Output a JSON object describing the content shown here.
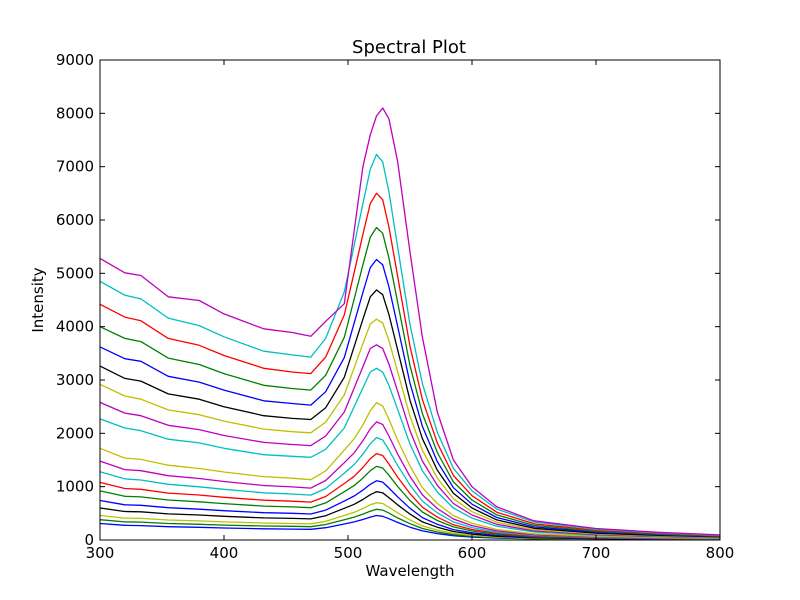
{
  "chart_data": {
    "type": "line",
    "title": "Spectral Plot",
    "xlabel": "Wavelength",
    "ylabel": "Intensity",
    "xlim": [
      300,
      800
    ],
    "ylim": [
      0,
      9000
    ],
    "xticks": [
      300,
      400,
      500,
      600,
      700,
      800
    ],
    "yticks": [
      0,
      1000,
      2000,
      3000,
      4000,
      5000,
      6000,
      7000,
      8000,
      9000
    ],
    "grid": false,
    "legend": "none",
    "x": [
      300,
      320,
      333,
      355,
      380,
      400,
      432,
      455,
      470,
      482,
      497,
      505,
      512,
      518,
      523,
      528,
      533,
      540,
      550,
      560,
      572,
      585,
      600,
      620,
      650,
      700,
      750,
      800
    ],
    "series": [
      {
        "color": "#0000ff",
        "values": [
          310,
          275,
          270,
          250,
          238,
          225,
          210,
          205,
          200,
          230,
          300,
          340,
          385,
          430,
          460,
          445,
          400,
          330,
          240,
          170,
          120,
          80,
          55,
          35,
          20,
          12,
          8,
          5
        ]
      },
      {
        "color": "#008000",
        "values": [
          380,
          340,
          335,
          310,
          295,
          280,
          262,
          256,
          250,
          290,
          380,
          430,
          485,
          540,
          575,
          560,
          505,
          415,
          305,
          215,
          150,
          100,
          70,
          45,
          25,
          15,
          10,
          6
        ]
      },
      {
        "color": "#bfbf00",
        "values": [
          460,
          410,
          405,
          375,
          358,
          340,
          318,
          310,
          303,
          350,
          460,
          520,
          590,
          660,
          700,
          685,
          615,
          510,
          375,
          265,
          185,
          125,
          85,
          55,
          32,
          18,
          12,
          8
        ]
      },
      {
        "color": "#000000",
        "values": [
          600,
          535,
          528,
          490,
          468,
          445,
          415,
          405,
          395,
          455,
          595,
          670,
          760,
          850,
          905,
          885,
          795,
          660,
          485,
          340,
          240,
          160,
          110,
          70,
          40,
          24,
          16,
          10
        ]
      },
      {
        "color": "#0000ff",
        "values": [
          740,
          660,
          650,
          605,
          578,
          550,
          512,
          500,
          488,
          560,
          730,
          825,
          935,
          1045,
          1110,
          1085,
          975,
          810,
          595,
          420,
          295,
          195,
          135,
          85,
          50,
          30,
          20,
          13
        ]
      },
      {
        "color": "#008000",
        "values": [
          920,
          820,
          808,
          750,
          717,
          682,
          636,
          620,
          606,
          695,
          905,
          1020,
          1160,
          1300,
          1380,
          1350,
          1215,
          1005,
          740,
          525,
          365,
          245,
          168,
          106,
          62,
          37,
          25,
          16
        ]
      },
      {
        "color": "#ff0000",
        "values": [
          1080,
          965,
          950,
          880,
          843,
          800,
          747,
          728,
          711,
          815,
          1060,
          1195,
          1360,
          1525,
          1620,
          1585,
          1425,
          1180,
          870,
          615,
          430,
          285,
          197,
          124,
          73,
          43,
          29,
          19
        ]
      },
      {
        "color": "#00bfbf",
        "values": [
          1280,
          1145,
          1125,
          1045,
          998,
          950,
          885,
          862,
          842,
          965,
          1255,
          1415,
          1610,
          1805,
          1920,
          1875,
          1690,
          1400,
          1030,
          730,
          510,
          340,
          233,
          147,
          86,
          51,
          34,
          22
        ]
      },
      {
        "color": "#bf00bf",
        "values": [
          1480,
          1320,
          1300,
          1205,
          1153,
          1097,
          1022,
          996,
          973,
          1115,
          1450,
          1635,
          1860,
          2085,
          2215,
          2165,
          1950,
          1615,
          1190,
          845,
          590,
          393,
          270,
          170,
          100,
          59,
          39,
          26
        ]
      },
      {
        "color": "#bfbf00",
        "values": [
          1720,
          1535,
          1512,
          1402,
          1340,
          1275,
          1188,
          1158,
          1131,
          1295,
          1685,
          1900,
          2160,
          2425,
          2575,
          2515,
          2265,
          1875,
          1385,
          980,
          685,
          457,
          313,
          197,
          116,
          69,
          46,
          30
        ]
      },
      {
        "color": "#00bfbf",
        "values": [
          2270,
          2100,
          2050,
          1890,
          1820,
          1720,
          1600,
          1570,
          1550,
          1700,
          2100,
          2500,
          2850,
          3150,
          3220,
          3150,
          2900,
          2450,
          1800,
          1300,
          900,
          600,
          410,
          258,
          150,
          89,
          60,
          40
        ]
      },
      {
        "color": "#bf00bf",
        "values": [
          2580,
          2380,
          2330,
          2150,
          2070,
          1960,
          1830,
          1790,
          1770,
          1950,
          2400,
          2850,
          3250,
          3590,
          3660,
          3590,
          3300,
          2790,
          2050,
          1480,
          1025,
          685,
          468,
          294,
          171,
          101,
          68,
          45
        ]
      },
      {
        "color": "#bfbf00",
        "values": [
          2920,
          2700,
          2640,
          2440,
          2350,
          2230,
          2080,
          2030,
          2010,
          2210,
          2720,
          3230,
          3680,
          4050,
          4140,
          4070,
          3740,
          3160,
          2320,
          1680,
          1160,
          775,
          530,
          333,
          194,
          115,
          77,
          51
        ]
      },
      {
        "color": "#000000",
        "values": [
          3260,
          3030,
          2980,
          2740,
          2640,
          2500,
          2330,
          2280,
          2260,
          2480,
          3050,
          3630,
          4140,
          4560,
          4690,
          4600,
          4230,
          3570,
          2620,
          1900,
          1310,
          875,
          600,
          376,
          219,
          130,
          87,
          58
        ]
      },
      {
        "color": "#0000ff",
        "values": [
          3620,
          3400,
          3350,
          3070,
          2960,
          2810,
          2610,
          2560,
          2530,
          2780,
          3420,
          4070,
          4640,
          5110,
          5260,
          5160,
          4750,
          4010,
          2940,
          2130,
          1470,
          980,
          672,
          422,
          246,
          146,
          98,
          65
        ]
      },
      {
        "color": "#008000",
        "values": [
          4000,
          3780,
          3720,
          3410,
          3290,
          3120,
          2900,
          2840,
          2810,
          3090,
          3800,
          4520,
          5160,
          5680,
          5860,
          5750,
          5290,
          4460,
          3270,
          2370,
          1640,
          1090,
          748,
          470,
          273,
          162,
          109,
          72
        ]
      },
      {
        "color": "#ff0000",
        "values": [
          4420,
          4180,
          4110,
          3780,
          3650,
          3460,
          3220,
          3150,
          3120,
          3430,
          4220,
          5020,
          5730,
          6310,
          6500,
          6380,
          5870,
          4950,
          3630,
          2630,
          1820,
          1210,
          830,
          521,
          303,
          180,
          121,
          80
        ]
      },
      {
        "color": "#00bfbf",
        "values": [
          4850,
          4590,
          4520,
          4160,
          4020,
          3810,
          3540,
          3470,
          3430,
          3780,
          4650,
          5530,
          6310,
          6950,
          7230,
          7090,
          6530,
          5500,
          4040,
          2930,
          2020,
          1345,
          923,
          580,
          337,
          200,
          134,
          89
        ]
      },
      {
        "color": "#bf00bf",
        "values": [
          5280,
          5010,
          4960,
          4560,
          4490,
          4240,
          3960,
          3890,
          3820,
          4100,
          4430,
          5800,
          7000,
          7600,
          7950,
          8100,
          7900,
          7100,
          5400,
          3800,
          2400,
          1500,
          1000,
          620,
          360,
          215,
          145,
          95
        ]
      }
    ]
  }
}
